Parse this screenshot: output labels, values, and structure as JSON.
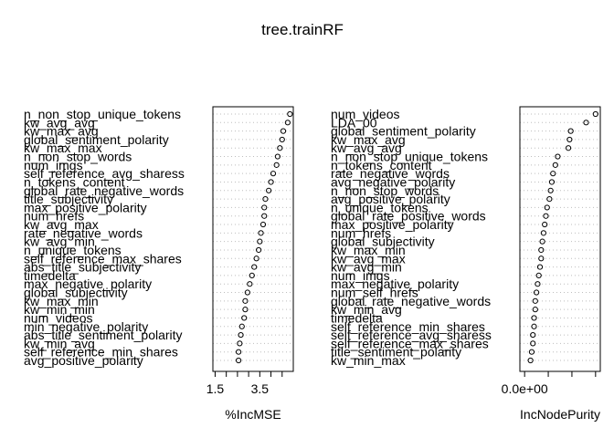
{
  "chart_data": {
    "type": "scatter",
    "title": "tree.trainRF",
    "colors": {
      "points": "#000000",
      "gridlines": "#bebebe",
      "frame": "#000000"
    },
    "panels": [
      {
        "xlabel": "%IncMSE",
        "x_tick_labels": [
          "1.5",
          "3.5"
        ],
        "x_ticks": [
          1.5,
          2.0,
          2.5,
          3.0,
          3.5,
          4.0,
          4.5
        ],
        "xlim": [
          1.4,
          5.0
        ],
        "labels": [
          "n_non_stop_unique_tokens",
          "kw_avg_avg",
          "kw_max_avg",
          "global_sentiment_polarity",
          "kw_max_max",
          "n_non_stop_words",
          "num_imgs",
          "self_reference_avg_sharess",
          "n_tokens_content",
          "global_rate_negative_words",
          "title_subjectivity",
          "max_positive_polarity",
          "num_hrefs",
          "kw_avg_max",
          "rate_negative_words",
          "kw_avg_min",
          "n_unique_tokens",
          "self_reference_max_shares",
          "abs_title_subjectivity",
          "timedelta",
          "max_negative_polarity",
          "global_subjectivity",
          "kw_max_min",
          "kw_min_min",
          "num_videos",
          "min_negative_polarity",
          "abs_title_sentiment_polarity",
          "kw_min_avg",
          "self_reference_min_shares",
          "avg_positive_polarity"
        ],
        "values": [
          4.85,
          4.75,
          4.55,
          4.5,
          4.4,
          4.3,
          4.25,
          4.1,
          4.0,
          3.9,
          3.75,
          3.7,
          3.7,
          3.65,
          3.55,
          3.5,
          3.45,
          3.35,
          3.25,
          3.15,
          3.05,
          2.95,
          2.85,
          2.85,
          2.8,
          2.7,
          2.65,
          2.6,
          2.55,
          2.55
        ]
      },
      {
        "xlabel": "IncNodePurity",
        "x_tick_labels": [
          "0.0e+00"
        ],
        "x_ticks": [
          0,
          1,
          2,
          3
        ],
        "xlim": [
          -0.2,
          3.2
        ],
        "labels": [
          "num_videos",
          "LDA_00",
          "global_sentiment_polarity",
          "kw_max_avg",
          "kw_avg_avg",
          "n_non_stop_unique_tokens",
          "n_tokens_content",
          "rate_negative_words",
          "avg_negative_polarity",
          "n_non_stop_words",
          "avg_positive_polarity",
          "n_unique_tokens",
          "global_rate_positive_words",
          "max_positive_polarity",
          "num_hrefs",
          "global_subjectivity",
          "kw_max_min",
          "kw_avg_max",
          "kw_avg_min",
          "num_imgs",
          "max_negative_polarity",
          "num_self_hrefs",
          "global_rate_negative_words",
          "kw_min_avg",
          "timedelta",
          "self_reference_min_shares",
          "self_reference_avg_sharess",
          "self_reference_max_shares",
          "title_sentiment_polarity",
          "kw_min_max"
        ],
        "values": [
          3.0,
          2.6,
          1.95,
          1.9,
          1.85,
          1.4,
          1.3,
          1.2,
          1.15,
          1.1,
          1.05,
          0.95,
          0.9,
          0.85,
          0.8,
          0.75,
          0.7,
          0.7,
          0.65,
          0.6,
          0.55,
          0.5,
          0.45,
          0.45,
          0.4,
          0.4,
          0.35,
          0.35,
          0.3,
          0.25
        ]
      }
    ]
  }
}
